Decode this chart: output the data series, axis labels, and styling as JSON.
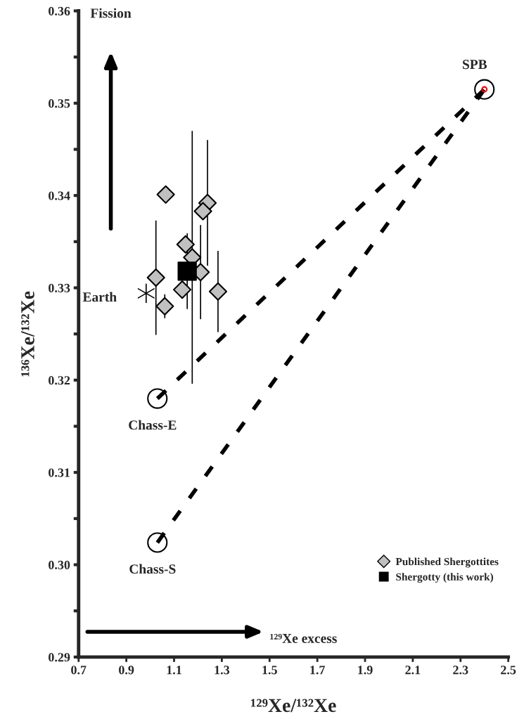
{
  "chart_data": {
    "type": "scatter",
    "xlabel": "¹²⁹Xe/¹³²Xe",
    "ylabel": "¹³⁶Xe/¹³²Xe",
    "xlim": [
      0.7,
      2.5
    ],
    "xticks": [
      0.7,
      0.9,
      1.1,
      1.3,
      1.5,
      1.7,
      1.9,
      2.1,
      2.3,
      2.5
    ],
    "ylim": [
      0.29,
      0.36
    ],
    "yticks": [
      0.29,
      {
        "value": 0.295,
        "label": null
      },
      {
        "value": 0.3,
        "label": "0.30"
      },
      {
        "value": 0.305,
        "label": null
      },
      0.31,
      {
        "value": 0.315,
        "label": null
      },
      0.32,
      {
        "value": 0.325,
        "label": null
      },
      0.33,
      {
        "value": 0.335,
        "label": null
      },
      0.34,
      {
        "value": 0.345,
        "label": null
      },
      0.35,
      {
        "value": 0.355,
        "label": null
      },
      0.36
    ],
    "series": [
      {
        "name": "Published Shergottites",
        "marker": "diamond",
        "color": "#c0c0c0",
        "x": [
          1.065,
          1.24,
          1.221,
          1.148,
          1.176,
          1.211,
          1.024,
          1.134,
          1.061,
          1.284
        ],
        "values": [
          0.3401,
          0.3392,
          0.3383,
          0.3347,
          0.3333,
          0.3317,
          0.3311,
          0.3298,
          0.328,
          0.3296
        ],
        "errors": [
          null,
          0.0068,
          null,
          null,
          0.0137,
          0.0051,
          0.0062,
          null,
          0.0013,
          0.0044
        ]
      },
      {
        "name": "Shergotty (this work)",
        "marker": "square",
        "color": "#000000",
        "x": [
          1.155
        ],
        "values": [
          0.3318
        ],
        "errors": [
          0.0041
        ]
      },
      {
        "marker": "cross",
        "color": "#000000",
        "x": [
          0.983
        ],
        "values": [
          0.3294
        ]
      },
      {
        "type": "line",
        "line_style": "dashed",
        "marker": "none",
        "color": "#000000",
        "x": [
          1.03,
          2.4
        ],
        "values": [
          0.318,
          0.3515
        ]
      },
      {
        "type": "line",
        "line_style": "dashed",
        "marker": "none",
        "color": "#000000",
        "x": [
          1.03,
          2.4
        ],
        "values": [
          0.3024,
          0.3515
        ]
      },
      {
        "marker": "circle",
        "color": "#000000",
        "x": [
          1.03,
          1.03,
          2.4
        ],
        "values": [
          0.318,
          0.3024,
          0.3515
        ]
      },
      {
        "marker": "circle",
        "color": "#ff0000",
        "x": [
          2.4
        ],
        "values": [
          0.3515
        ]
      }
    ],
    "annotations": [
      {
        "text": "SPB",
        "x": 2.4,
        "y": 0.3515
      },
      {
        "text": "Earth",
        "x": 0.983,
        "y": 0.3294
      },
      {
        "text": "Chass-E",
        "x": 1.03,
        "y": 0.318
      },
      {
        "text": "Chass-S",
        "x": 1.03,
        "y": 0.3024
      },
      "Fission",
      "¹²⁹Xe excess"
    ],
    "legend": "bottom right",
    "grid": false
  }
}
